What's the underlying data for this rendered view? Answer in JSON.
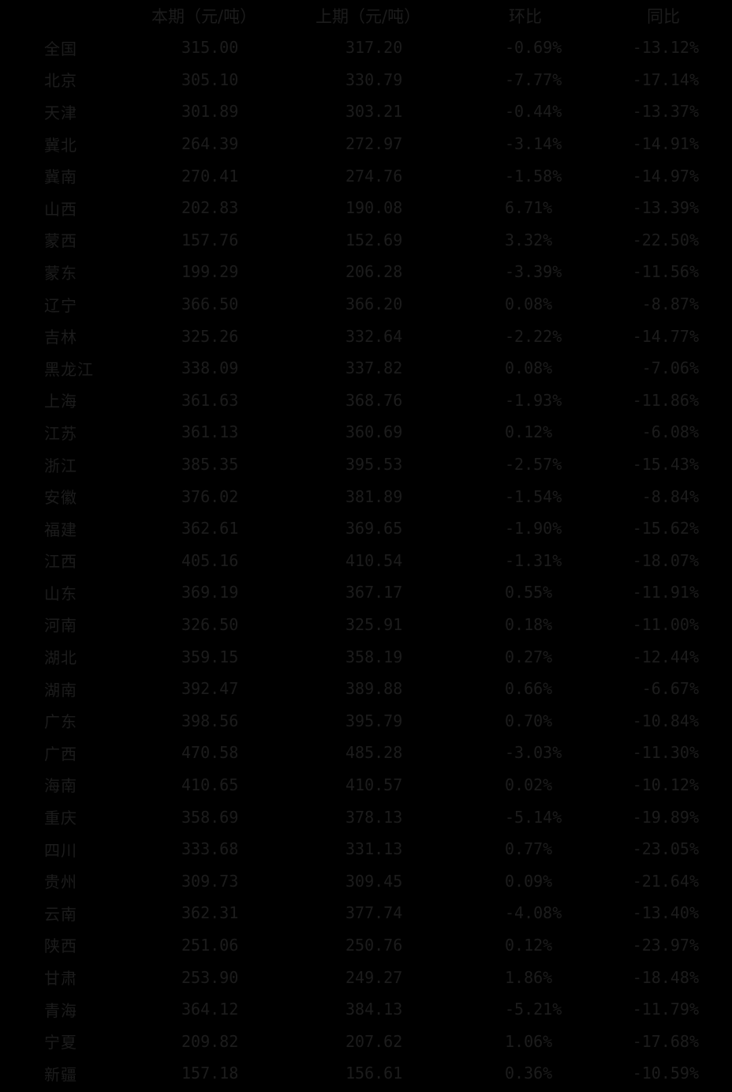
{
  "columns": [
    "",
    "本期（元/吨）",
    "上期（元/吨）",
    "环比",
    "同比"
  ],
  "rows": [
    [
      "全国",
      "315.00",
      "317.20",
      "-0.69%",
      "-13.12%"
    ],
    [
      "北京",
      "305.10",
      "330.79",
      "-7.77%",
      "-17.14%"
    ],
    [
      "天津",
      "301.89",
      "303.21",
      "-0.44%",
      "-13.37%"
    ],
    [
      "冀北",
      "264.39",
      "272.97",
      "-3.14%",
      "-14.91%"
    ],
    [
      "冀南",
      "270.41",
      "274.76",
      "-1.58%",
      "-14.97%"
    ],
    [
      "山西",
      "202.83",
      "190.08",
      "6.71%",
      "-13.39%"
    ],
    [
      "蒙西",
      "157.76",
      "152.69",
      "3.32%",
      "-22.50%"
    ],
    [
      "蒙东",
      "199.29",
      "206.28",
      "-3.39%",
      "-11.56%"
    ],
    [
      "辽宁",
      "366.50",
      "366.20",
      "0.08%",
      "-8.87%"
    ],
    [
      "吉林",
      "325.26",
      "332.64",
      "-2.22%",
      "-14.77%"
    ],
    [
      "黑龙江",
      "338.09",
      "337.82",
      "0.08%",
      "-7.06%"
    ],
    [
      "上海",
      "361.63",
      "368.76",
      "-1.93%",
      "-11.86%"
    ],
    [
      "江苏",
      "361.13",
      "360.69",
      "0.12%",
      "-6.08%"
    ],
    [
      "浙江",
      "385.35",
      "395.53",
      "-2.57%",
      "-15.43%"
    ],
    [
      "安徽",
      "376.02",
      "381.89",
      "-1.54%",
      "-8.84%"
    ],
    [
      "福建",
      "362.61",
      "369.65",
      "-1.90%",
      "-15.62%"
    ],
    [
      "江西",
      "405.16",
      "410.54",
      "-1.31%",
      "-18.07%"
    ],
    [
      "山东",
      "369.19",
      "367.17",
      "0.55%",
      "-11.91%"
    ],
    [
      "河南",
      "326.50",
      "325.91",
      "0.18%",
      "-11.00%"
    ],
    [
      "湖北",
      "359.15",
      "358.19",
      "0.27%",
      "-12.44%"
    ],
    [
      "湖南",
      "392.47",
      "389.88",
      "0.66%",
      "-6.67%"
    ],
    [
      "广东",
      "398.56",
      "395.79",
      "0.70%",
      "-10.84%"
    ],
    [
      "广西",
      "470.58",
      "485.28",
      "-3.03%",
      "-11.30%"
    ],
    [
      "海南",
      "410.65",
      "410.57",
      "0.02%",
      "-10.12%"
    ],
    [
      "重庆",
      "358.69",
      "378.13",
      "-5.14%",
      "-19.89%"
    ],
    [
      "四川",
      "333.68",
      "331.13",
      "0.77%",
      "-23.05%"
    ],
    [
      "贵州",
      "309.73",
      "309.45",
      "0.09%",
      "-21.64%"
    ],
    [
      "云南",
      "362.31",
      "377.74",
      "-4.08%",
      "-13.40%"
    ],
    [
      "陕西",
      "251.06",
      "250.76",
      "0.12%",
      "-23.97%"
    ],
    [
      "甘肃",
      "253.90",
      "249.27",
      "1.86%",
      "-18.48%"
    ],
    [
      "青海",
      "364.12",
      "384.13",
      "-5.21%",
      "-11.79%"
    ],
    [
      "宁夏",
      "209.82",
      "207.62",
      "1.06%",
      "-17.68%"
    ],
    [
      "新疆",
      "157.18",
      "156.61",
      "0.36%",
      "-10.59%"
    ]
  ],
  "colors": {
    "background": "#000000",
    "text": "#1c1c1c"
  }
}
